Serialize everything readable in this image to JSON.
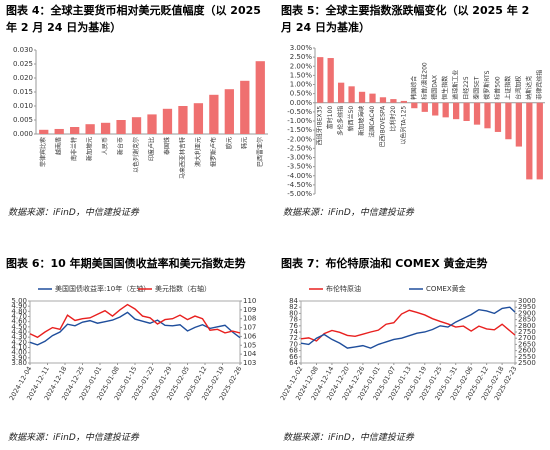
{
  "chart_data": [
    {
      "type": "bar",
      "title": "图表 4：全球主要货币相对美元贬值幅度（以 2025 年 2 月 24 日为基准）",
      "source": "数据来源：iFinD，中信建投证券",
      "categories": [
        "菲律宾比索",
        "越南盾",
        "南非兰特",
        "新加坡元",
        "人民币",
        "新台币",
        "以色列谢克尔",
        "印度卢比",
        "泰国铢",
        "马来西亚林吉特",
        "澳大利亚元",
        "俄罗斯卢布",
        "欧元",
        "韩元",
        "巴西雷亚尔"
      ],
      "values": [
        0.0015,
        0.0018,
        0.0025,
        0.0035,
        0.004,
        0.005,
        0.006,
        0.007,
        0.009,
        0.01,
        0.011,
        0.014,
        0.016,
        0.019,
        0.026
      ],
      "color": "#ef7070",
      "ylim": [
        0,
        0.03
      ],
      "yticks": [
        {
          "value": 0,
          "label": "0.000"
        },
        {
          "value": 0.005,
          "label": "0.005"
        },
        {
          "value": 0.01,
          "label": "0.010"
        },
        {
          "value": 0.015,
          "label": "0.015"
        },
        {
          "value": 0.02,
          "label": "0.020"
        },
        {
          "value": 0.025,
          "label": "0.025"
        },
        {
          "value": 0.03,
          "label": "0.030"
        }
      ]
    },
    {
      "type": "bar",
      "title": "图表 5：全球主要指数涨跌幅变化（以 2025 年 2 月 24 日为基准）",
      "source": "数据来源：iFinD，中信建投证券",
      "categories": [
        "西班牙IBEX35",
        "富时100",
        "多伦多综指",
        "新西兰50",
        "新加坡海峡",
        "法国CAC40",
        "巴西IBOVESPA",
        "比利时20",
        "以色列TA-125",
        "韩国综合",
        "标普/澳证200",
        "德国DAX",
        "恒生指数",
        "道琼斯工业",
        "日经225",
        "泰国SET",
        "俄罗斯RTS",
        "标普500",
        "上证指数",
        "台湾加权",
        "纳斯达克",
        "菲律宾综指"
      ],
      "values": [
        2.5,
        2.45,
        1.1,
        0.9,
        0.6,
        0.5,
        0.3,
        0.2,
        0.1,
        -0.3,
        -0.5,
        -0.7,
        -0.8,
        -0.9,
        -1.0,
        -1.2,
        -1.4,
        -1.6,
        -2.0,
        -2.4,
        -4.2,
        -4.2
      ],
      "color": "#ef7070",
      "ylim": [
        -5,
        3
      ],
      "yticks": [
        {
          "value": 3,
          "label": "3.00%"
        },
        {
          "value": 2.5,
          "label": "2.50%"
        },
        {
          "value": 2,
          "label": "2.00%"
        },
        {
          "value": 1.5,
          "label": "1.50%"
        },
        {
          "value": 1,
          "label": "1.00%"
        },
        {
          "value": 0.5,
          "label": "0.50%"
        },
        {
          "value": 0,
          "label": "0.00%"
        },
        {
          "value": -0.5,
          "label": "-0.50%"
        },
        {
          "value": -1,
          "label": "-1.00%"
        },
        {
          "value": -1.5,
          "label": "-1.50%"
        },
        {
          "value": -2,
          "label": "-2.00%"
        },
        {
          "value": -2.5,
          "label": "-2.50%"
        },
        {
          "value": -3,
          "label": "-3.00%"
        },
        {
          "value": -3.5,
          "label": "-3.50%"
        },
        {
          "value": -4,
          "label": "-4.00%"
        },
        {
          "value": -4.5,
          "label": "-4.50%"
        },
        {
          "value": -5,
          "label": "-5.00%"
        }
      ]
    },
    {
      "type": "line",
      "title": "图表 6：10 年期美国国债收益率和美元指数走势",
      "source": "数据来源：iFinD，中信建投证券",
      "x": [
        "2024-12-04",
        "2024-12-07",
        "2024-12-10",
        "2024-12-13",
        "2024-12-16",
        "2024-12-19",
        "2024-12-22",
        "2024-12-25",
        "2024-12-28",
        "2024-12-31",
        "2025-01-03",
        "2025-01-06",
        "2025-01-09",
        "2025-01-12",
        "2025-01-15",
        "2025-01-18",
        "2025-01-21",
        "2025-01-24",
        "2025-01-27",
        "2025-01-30",
        "2025-02-02",
        "2025-02-05",
        "2025-02-08",
        "2025-02-11",
        "2025-02-14",
        "2025-02-17",
        "2025-02-20",
        "2025-02-23",
        "2025-02-26"
      ],
      "xlim": [
        "2024-12-04",
        "2025-02-26"
      ],
      "xticks": [
        "2024-12-04",
        "2024-12-11",
        "2024-12-18",
        "2024-12-25",
        "2025-01-01",
        "2025-01-08",
        "2025-01-15",
        "2025-01-22",
        "2025-01-29",
        "2025-02-05",
        "2025-02-12",
        "2025-02-19",
        "2025-02-26"
      ],
      "series": [
        {
          "name": "美国国债收益率:10年（左轴）",
          "color": "#1f4e9c",
          "values": [
            4.2,
            4.15,
            4.22,
            4.33,
            4.4,
            4.55,
            4.52,
            4.59,
            4.62,
            4.57,
            4.6,
            4.63,
            4.69,
            4.78,
            4.65,
            4.61,
            4.57,
            4.63,
            4.53,
            4.52,
            4.54,
            4.42,
            4.49,
            4.54,
            4.47,
            4.5,
            4.53,
            4.4,
            4.29
          ]
        },
        {
          "name": "美元指数（右轴）",
          "color": "#e8201f",
          "axis": "y2",
          "values": [
            106.3,
            105.9,
            106.5,
            107.0,
            106.8,
            108.4,
            107.8,
            108.0,
            108.1,
            108.5,
            108.9,
            108.3,
            109.0,
            109.6,
            109.1,
            108.3,
            108.1,
            107.4,
            107.9,
            108.0,
            108.4,
            107.9,
            108.3,
            108.0,
            106.7,
            106.8,
            106.4,
            106.6,
            106.4
          ]
        }
      ],
      "ylim": [
        3.8,
        5.0
      ],
      "yticks": [
        {
          "value": 3.8,
          "label": "3.80"
        },
        {
          "value": 3.9,
          "label": "3.90"
        },
        {
          "value": 4.0,
          "label": "4.00"
        },
        {
          "value": 4.1,
          "label": "4.10"
        },
        {
          "value": 4.2,
          "label": "4.20"
        },
        {
          "value": 4.3,
          "label": "4.30"
        },
        {
          "value": 4.4,
          "label": "4.40"
        },
        {
          "value": 4.5,
          "label": "4.50"
        },
        {
          "value": 4.6,
          "label": "4.60"
        },
        {
          "value": 4.7,
          "label": "4.70"
        },
        {
          "value": 4.8,
          "label": "4.80"
        },
        {
          "value": 4.9,
          "label": "4.90"
        },
        {
          "value": 5.0,
          "label": "5.00"
        }
      ],
      "y2lim": [
        103,
        110
      ],
      "y2ticks": [
        103,
        104,
        105,
        106,
        107,
        108,
        109,
        110
      ]
    },
    {
      "type": "line",
      "title": "图表 7：布伦特原油和 COMEX 黄金走势",
      "source": "数据来源：iFinD，中信建投证券",
      "x": [
        "2024-12-02",
        "2024-12-05",
        "2024-12-08",
        "2024-12-11",
        "2024-12-14",
        "2024-12-17",
        "2024-12-20",
        "2024-12-23",
        "2024-12-26",
        "2024-12-29",
        "2025-01-01",
        "2025-01-04",
        "2025-01-07",
        "2025-01-10",
        "2025-01-13",
        "2025-01-16",
        "2025-01-19",
        "2025-01-22",
        "2025-01-25",
        "2025-01-28",
        "2025-01-31",
        "2025-02-03",
        "2025-02-06",
        "2025-02-09",
        "2025-02-12",
        "2025-02-15",
        "2025-02-18",
        "2025-02-21",
        "2025-02-23"
      ],
      "xlim": [
        "2024-12-02",
        "2025-02-23"
      ],
      "xticks": [
        "2024-12-02",
        "2024-12-08",
        "2024-12-14",
        "2024-12-20",
        "2024-12-26",
        "2025-01-01",
        "2025-01-07",
        "2025-01-13",
        "2025-01-19",
        "2025-01-25",
        "2025-01-31",
        "2025-02-06",
        "2025-02-12",
        "2025-02-18",
        "2025-02-23"
      ],
      "series": [
        {
          "name": "布伦特原油",
          "color": "#e8201f",
          "values": [
            71.8,
            72.1,
            71.1,
            73.5,
            74.5,
            73.9,
            72.9,
            72.6,
            73.3,
            74.0,
            74.6,
            76.5,
            77.0,
            79.8,
            81.0,
            80.3,
            79.5,
            78.3,
            77.4,
            76.6,
            75.6,
            75.9,
            74.3,
            75.9,
            75.0,
            74.7,
            76.5,
            74.4,
            73.0
          ]
        },
        {
          "name": "COMEX黄金",
          "color": "#1f4e9c",
          "axis": "y2",
          "values": [
            2660,
            2650,
            2700,
            2730,
            2690,
            2660,
            2620,
            2630,
            2640,
            2620,
            2650,
            2670,
            2690,
            2700,
            2720,
            2740,
            2750,
            2770,
            2800,
            2790,
            2830,
            2860,
            2890,
            2930,
            2920,
            2900,
            2940,
            2950,
            2910
          ]
        }
      ],
      "ylim": [
        64,
        84
      ],
      "yticks": [
        64,
        66,
        68,
        70,
        72,
        74,
        76,
        78,
        80,
        82,
        84
      ],
      "y2lim": [
        2500,
        3000
      ],
      "y2ticks": [
        2500,
        2550,
        2600,
        2650,
        2700,
        2750,
        2800,
        2850,
        2900,
        2950,
        3000
      ]
    }
  ]
}
